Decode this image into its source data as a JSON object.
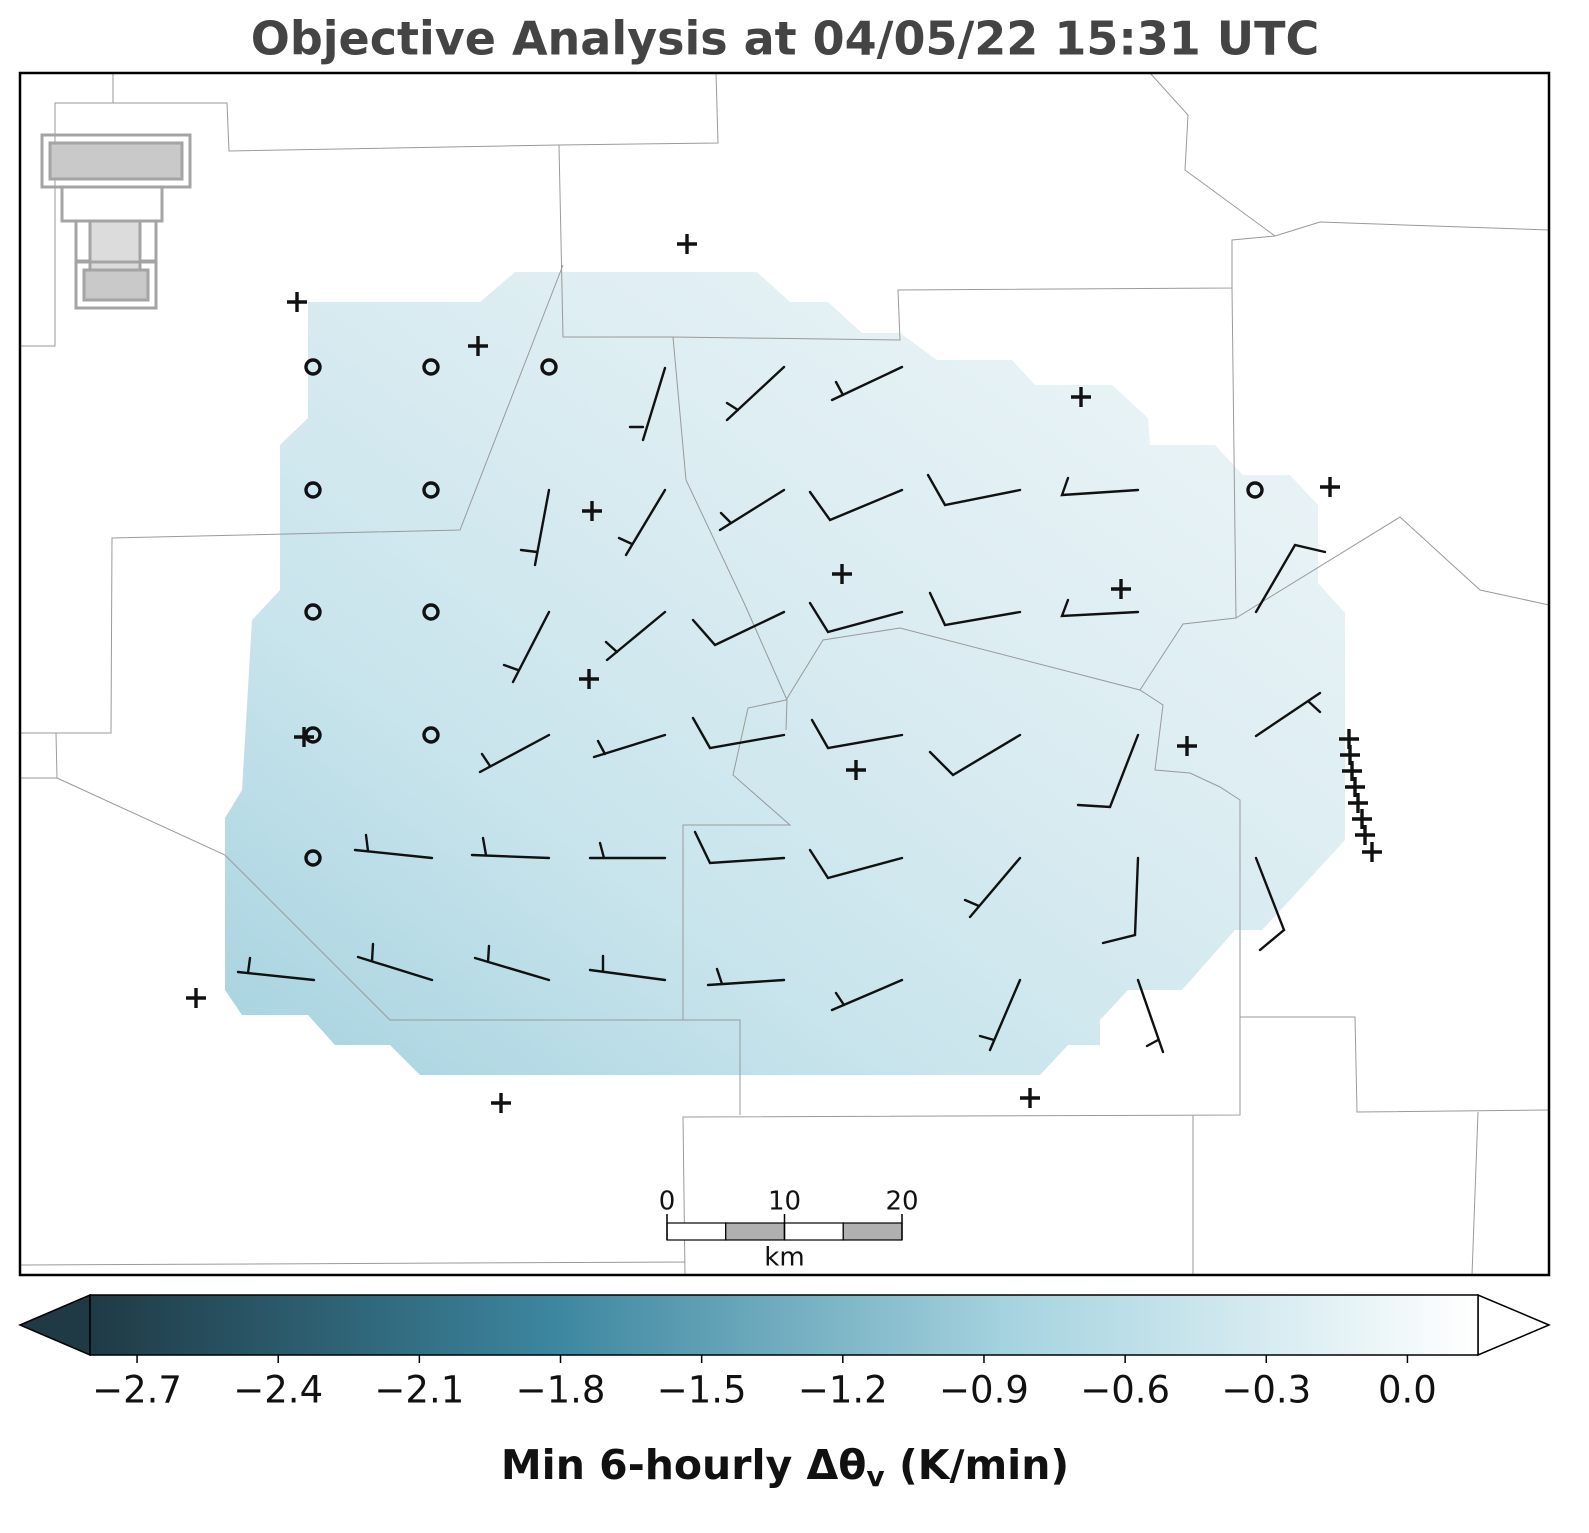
{
  "chart_data": {
    "type": "contour-map",
    "title": "Objective Analysis at 04/05/22 15:31 UTC",
    "colorbar": {
      "label": {
        "prefix": "Min 6-hourly Δθ",
        "subscript": "v",
        "suffix": " (K/min)"
      },
      "clim": [
        -2.8,
        0.15
      ],
      "colors": [
        "#1f3a45",
        "#3c869f",
        "#a7d4e0",
        "#ffffff"
      ],
      "ticks": [
        {
          "value": -2.7,
          "label": "−2.7"
        },
        {
          "value": -2.4,
          "label": "−2.4"
        },
        {
          "value": -2.1,
          "label": "−2.1"
        },
        {
          "value": -1.8,
          "label": "−1.8"
        },
        {
          "value": -1.5,
          "label": "−1.5"
        },
        {
          "value": -1.2,
          "label": "−1.2"
        },
        {
          "value": -0.9,
          "label": "−0.9"
        },
        {
          "value": -0.6,
          "label": "−0.6"
        },
        {
          "value": -0.3,
          "label": "−0.3"
        },
        {
          "value": 0,
          "label": "0.0"
        }
      ]
    },
    "scalebar": {
      "unit": "km",
      "xlim": [
        0,
        20
      ],
      "xticks": [
        0,
        10,
        20
      ]
    }
  }
}
